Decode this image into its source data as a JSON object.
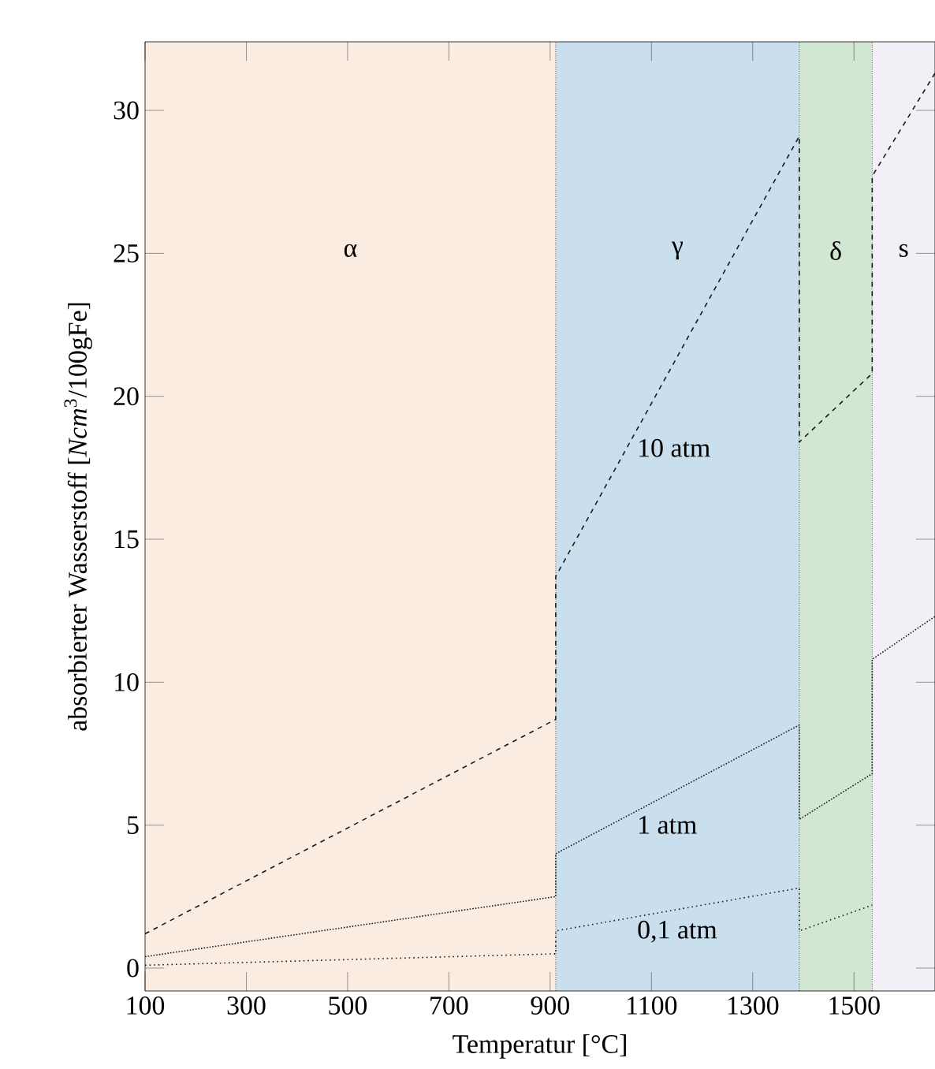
{
  "chart_data": {
    "type": "line",
    "xlabel": "Temperatur [°C]",
    "ylabel": "absorbierter Wasserstoff [*Ncm*$^{3}$/100gFe]",
    "xlim": [
      100,
      1660
    ],
    "ylim": [
      -0.8,
      32.4
    ],
    "xticks": [
      100,
      300,
      500,
      700,
      900,
      1100,
      1300,
      1500
    ],
    "yticks": [
      0,
      5,
      10,
      15,
      20,
      25,
      30
    ],
    "series": [
      {
        "name": "10 atm",
        "color": "#1a1a1a",
        "line_style": "dashed",
        "x": [
          100,
          911,
          911,
          1392,
          1392,
          1536,
          1536,
          1660
        ],
        "values": [
          1.2,
          8.7,
          13.7,
          29.1,
          18.4,
          20.8,
          27.7,
          31.3
        ]
      },
      {
        "name": "1 atm",
        "color": "#1a1a1a",
        "line_style": "dotted",
        "x": [
          100,
          911,
          911,
          1392,
          1392,
          1536,
          1536,
          1660
        ],
        "values": [
          0.4,
          2.5,
          4.0,
          8.5,
          5.2,
          6.8,
          10.8,
          12.3
        ]
      },
      {
        "name": "0,1 atm",
        "color": "#1a1a1a",
        "line_style": "loosely dotted",
        "x": [
          100,
          911,
          911,
          1392,
          1392,
          1536
        ],
        "values": [
          0.1,
          0.5,
          1.3,
          2.8,
          1.3,
          2.2
        ]
      }
    ],
    "bands": [
      {
        "axis": "x",
        "from": 100,
        "to": 911,
        "label": "α",
        "color": "#fbece1"
      },
      {
        "axis": "x",
        "from": 911,
        "to": 1392,
        "label": "γ",
        "color": "#cadfed"
      },
      {
        "axis": "x",
        "from": 1392,
        "to": 1536,
        "label": "δ",
        "color": "#d2e7d1"
      },
      {
        "axis": "x",
        "from": 1536,
        "to": 1660,
        "label": "s",
        "color": "#f3eff7"
      }
    ],
    "ref_lines": [
      {
        "axis": "x",
        "value": 911,
        "line_style": "dotted"
      },
      {
        "axis": "x",
        "value": 1392,
        "line_style": "dotted"
      },
      {
        "axis": "x",
        "value": 1536,
        "line_style": "dotted"
      }
    ],
    "grid": false
  }
}
